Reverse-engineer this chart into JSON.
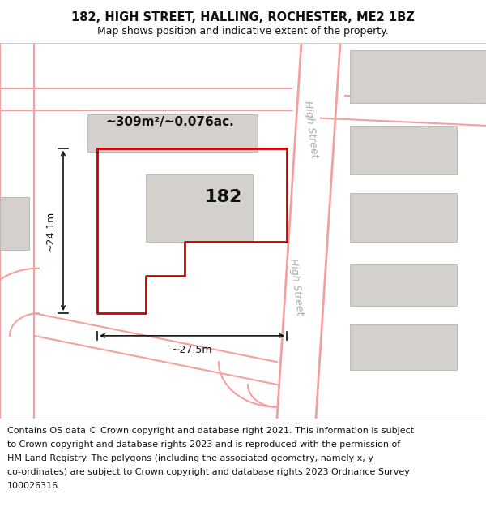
{
  "title_line1": "182, HIGH STREET, HALLING, ROCHESTER, ME2 1BZ",
  "title_line2": "Map shows position and indicative extent of the property.",
  "footer_text": "Contains OS data © Crown copyright and database right 2021. This information is subject to Crown copyright and database rights 2023 and is reproduced with the permission of HM Land Registry. The polygons (including the associated geometry, namely x, y co-ordinates) are subject to Crown copyright and database rights 2023 Ordnance Survey 100026316.",
  "area_label": "~309m²/~0.076ac.",
  "number_label": "182",
  "dim_width": "~27.5m",
  "dim_height": "~24.1m",
  "street_label_upper": "High Street",
  "street_label_lower": "High Street",
  "bg_color": "#ffffff",
  "map_bg": "#f2f0ee",
  "road_color": "#f5a0a0",
  "building_fill": "#d4d0cc",
  "building_edge": "#b8b4b0",
  "property_color": "#cc0000",
  "dim_color": "#111111",
  "text_color": "#111111",
  "street_label_color": "#aaaaaa",
  "title_fontsize": 10.5,
  "subtitle_fontsize": 9,
  "footer_fontsize": 8,
  "number_fontsize": 16,
  "area_fontsize": 11,
  "dim_fontsize": 9
}
